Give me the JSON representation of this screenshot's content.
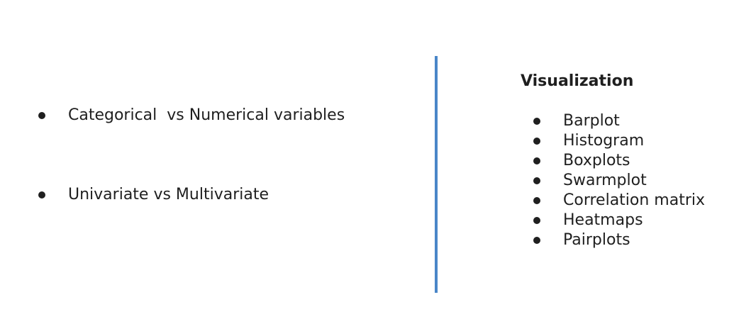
{
  "left": {
    "items": [
      "Categorical  vs Numerical variables",
      "Univariate vs Multivariate"
    ]
  },
  "right": {
    "heading": "Visualization",
    "items": [
      "Barplot",
      "Histogram",
      "Boxplots",
      "Swarmplot",
      "Correlation matrix",
      "Heatmaps",
      "Pairplots"
    ]
  },
  "colors": {
    "divider": "#4a86c8",
    "text": "#1f1f1f",
    "background": "#ffffff"
  }
}
